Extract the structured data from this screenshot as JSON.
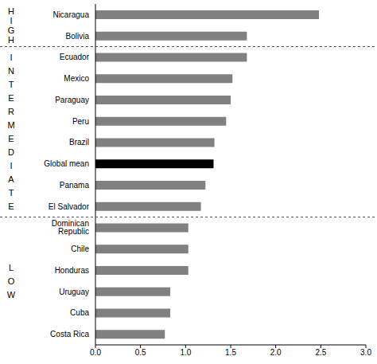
{
  "chart_data": {
    "type": "bar",
    "orientation": "horizontal",
    "categories": [
      "Nicaragua",
      "Bolivia",
      "Ecuador",
      "Mexico",
      "Paraguay",
      "Peru",
      "Brazil",
      "Global mean",
      "Panama",
      "El Salvador",
      "Dominican Republic",
      "Chile",
      "Honduras",
      "Uruguay",
      "Cuba",
      "Costa Rica"
    ],
    "values": [
      2.48,
      1.68,
      1.68,
      1.52,
      1.5,
      1.45,
      1.32,
      1.31,
      1.22,
      1.17,
      1.03,
      1.03,
      1.03,
      0.83,
      0.83,
      0.77
    ],
    "colors": [
      "#808080",
      "#808080",
      "#808080",
      "#808080",
      "#808080",
      "#808080",
      "#808080",
      "#000000",
      "#808080",
      "#808080",
      "#808080",
      "#808080",
      "#808080",
      "#808080",
      "#808080",
      "#808080"
    ],
    "groups": [
      "HIGH",
      "HIGH",
      "INTERMEDIATE",
      "INTERMEDIATE",
      "INTERMEDIATE",
      "INTERMEDIATE",
      "INTERMEDIATE",
      "INTERMEDIATE",
      "INTERMEDIATE",
      "INTERMEDIATE",
      "LOW",
      "LOW",
      "LOW",
      "LOW",
      "LOW",
      "LOW"
    ],
    "xlim": [
      0,
      3
    ],
    "xticks": [
      {
        "value": 0,
        "label": "0.0"
      },
      0.5,
      {
        "value": 1,
        "label": "1.0"
      },
      1.5,
      {
        "value": 2,
        "label": "2.0"
      },
      2.5,
      {
        "value": 3,
        "label": "3.0"
      }
    ],
    "grid": false
  }
}
